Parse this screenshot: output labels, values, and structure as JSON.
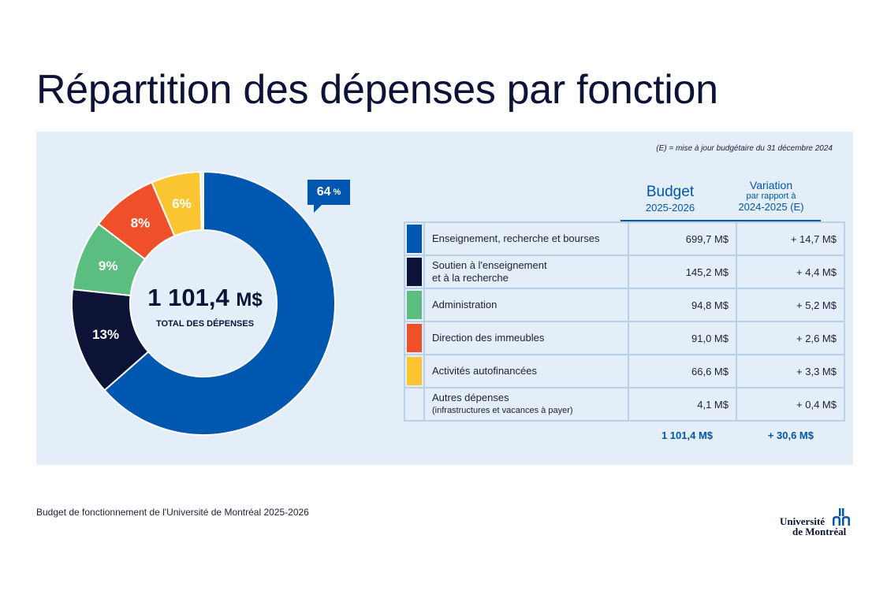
{
  "header": {
    "title": "Répartition des dépenses par fonction"
  },
  "note": "(E) = mise à jour budgétaire du 31 décembre 2024",
  "chart_data": {
    "type": "pie",
    "variant": "donut",
    "slices": [
      {
        "label": "Enseignement, recherche et bourses",
        "value": 699.7,
        "pct_label": "64",
        "color": "#0057b0"
      },
      {
        "label": "Soutien à l'enseignement et à la recherche",
        "value": 145.2,
        "pct_label": "13%",
        "color": "#0d1237"
      },
      {
        "label": "Administration",
        "value": 94.8,
        "pct_label": "9%",
        "color": "#5bbd7f"
      },
      {
        "label": "Direction des immeubles",
        "value": 91.0,
        "pct_label": "8%",
        "color": "#ef5029"
      },
      {
        "label": "Activités autofinancées",
        "value": 66.6,
        "pct_label": "6%",
        "color": "#fbc632"
      },
      {
        "label": "Autres dépenses",
        "value": 4.1,
        "pct_label": "",
        "color": "#e3eef8"
      }
    ],
    "center_total": "1 101,4",
    "center_unit": "M$",
    "center_label": "TOTAL DES DÉPENSES",
    "callout_pct": "64",
    "callout_sign": "%"
  },
  "table": {
    "col_budget_title": "Budget",
    "col_budget_sub": "2025-2026",
    "col_var_title": "Variation",
    "col_var_sub1": "par rapport à",
    "col_var_sub2": "2024-2025 (E)",
    "rows": [
      {
        "label": "Enseignement, recherche et bourses",
        "sublabel": "",
        "budget": "699,7 M$",
        "variation": "+ 14,7 M$",
        "color": "#0057b0"
      },
      {
        "label": "Soutien à l'enseignement",
        "sublabel": "et à la recherche",
        "budget": "145,2 M$",
        "variation": "+ 4,4 M$",
        "color": "#0d1237"
      },
      {
        "label": "Administration",
        "sublabel": "",
        "budget": "94,8 M$",
        "variation": "+ 5,2 M$",
        "color": "#5bbd7f"
      },
      {
        "label": "Direction des immeubles",
        "sublabel": "",
        "budget": "91,0 M$",
        "variation": "+ 2,6 M$",
        "color": "#ef5029"
      },
      {
        "label": "Activités autofinancées",
        "sublabel": "",
        "budget": "66,6 M$",
        "variation": "+ 3,3 M$",
        "color": "#fbc632"
      },
      {
        "label": "Autres dépenses",
        "sublabel": "(infrastructures et vacances à payer)",
        "budget": "4,1 M$",
        "variation": "+ 0,4 M$",
        "color": "#e3eef8"
      }
    ],
    "total_budget": "1 101,4 M$",
    "total_variation": "+ 30,6 M$"
  },
  "footer": {
    "text": "Budget de fonctionnement de l'Université de Montréal 2025-2026",
    "logo_line1": "Université",
    "logo_line2": "de Montréal"
  }
}
